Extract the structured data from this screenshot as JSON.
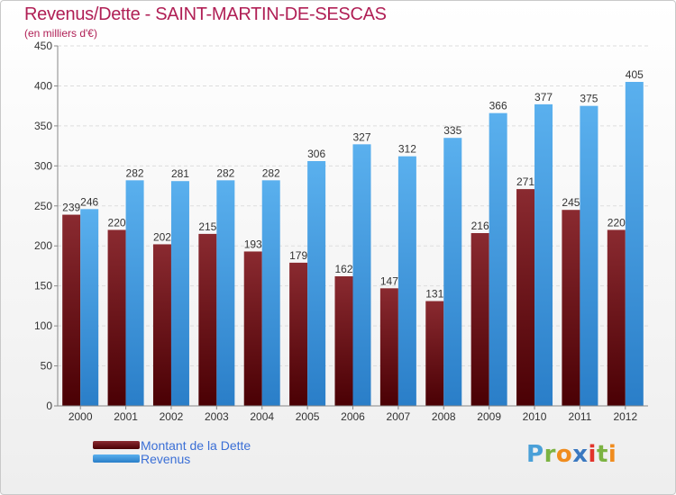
{
  "header": {
    "title": "Revenus/Dette - SAINT-MARTIN-DE-SESCAS",
    "subtitle": "(en milliers d'€)"
  },
  "legend": {
    "items": [
      {
        "label": "Montant de la Dette",
        "color": "#6e0f14"
      },
      {
        "label": "Revenus",
        "color": "#3a9be6"
      }
    ]
  },
  "logo": {
    "letters": [
      "P",
      "r",
      "o",
      "x",
      "i",
      "t",
      "i"
    ],
    "colors": [
      "#4aa0d8",
      "#7cb342",
      "#f08c1e",
      "#3a78c0",
      "#e2342b",
      "#7cb342",
      "#f08c1e"
    ]
  },
  "chart_data": {
    "type": "bar",
    "title": "Revenus/Dette - SAINT-MARTIN-DE-SESCAS",
    "ylabel": "(en milliers d'€)",
    "xlabel": "",
    "categories": [
      "2000",
      "2001",
      "2002",
      "2003",
      "2004",
      "2005",
      "2006",
      "2007",
      "2008",
      "2009",
      "2010",
      "2011",
      "2012"
    ],
    "series": [
      {
        "name": "Montant de la Dette",
        "values": [
          239,
          220,
          202,
          215,
          193,
          179,
          162,
          147,
          131,
          216,
          271,
          245,
          220
        ],
        "color": "#6e0f14"
      },
      {
        "name": "Revenus",
        "values": [
          246,
          282,
          281,
          282,
          282,
          306,
          327,
          312,
          335,
          366,
          377,
          375,
          405
        ],
        "color": "#3a9be6"
      }
    ],
    "ylim": [
      0,
      450
    ],
    "yticks": [
      0,
      50,
      100,
      150,
      200,
      250,
      300,
      350,
      400,
      450
    ],
    "grid": true,
    "legend_position": "bottom-left"
  }
}
